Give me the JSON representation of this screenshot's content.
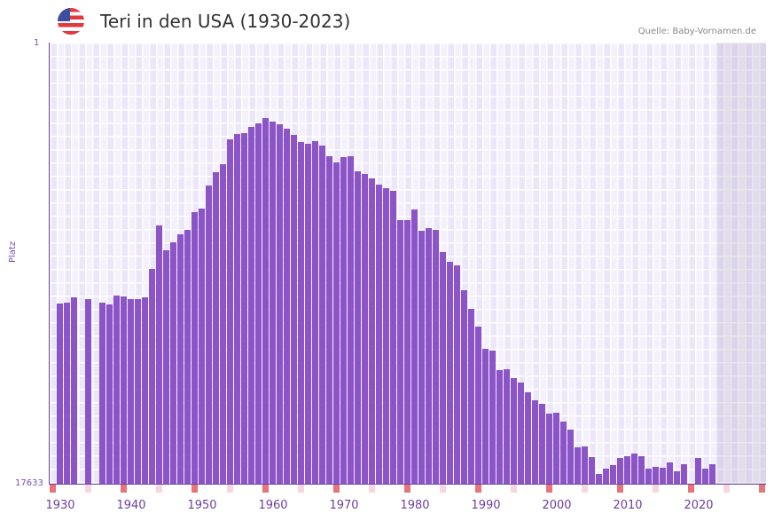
{
  "header": {
    "flag_icon": "us-flag-icon",
    "title": "Teri in den USA (1930-2023)",
    "source": "Quelle: Baby-Vornamen.de"
  },
  "colors": {
    "bar": "#8b55c7",
    "axis": "#6b3fa0",
    "marker_decade": "#e8737a",
    "marker_half": "#f6d6e0"
  },
  "chart_data": {
    "type": "bar",
    "title": "Teri in den USA (1930-2023)",
    "xlabel": "",
    "ylabel": "Platz",
    "y_axis_inverted": true,
    "ylim": [
      17633,
      1
    ],
    "yticks": [
      "1",
      "17633"
    ],
    "xticks": [
      "1930",
      "1940",
      "1950",
      "1960",
      "1970",
      "1980",
      "1990",
      "2000",
      "2010",
      "2020"
    ],
    "x_range": [
      1929,
      2029
    ],
    "future_shaded_from": 2023,
    "grid": true,
    "value_unit": "bar top pixel height above baseline (0-497 px, 497 = rank 1)",
    "categories": [
      1930,
      1931,
      1932,
      1933,
      1934,
      1935,
      1936,
      1937,
      1938,
      1939,
      1940,
      1941,
      1942,
      1943,
      1944,
      1945,
      1946,
      1947,
      1948,
      1949,
      1950,
      1951,
      1952,
      1953,
      1954,
      1955,
      1956,
      1957,
      1958,
      1959,
      1960,
      1961,
      1962,
      1963,
      1964,
      1965,
      1966,
      1967,
      1968,
      1969,
      1970,
      1971,
      1972,
      1973,
      1974,
      1975,
      1976,
      1977,
      1978,
      1979,
      1980,
      1981,
      1982,
      1983,
      1984,
      1985,
      1986,
      1987,
      1988,
      1989,
      1990,
      1991,
      1992,
      1993,
      1994,
      1995,
      1996,
      1997,
      1998,
      1999,
      2000,
      2001,
      2002,
      2003,
      2004,
      2005,
      2006,
      2007,
      2008,
      2009,
      2010,
      2011,
      2012,
      2013,
      2014,
      2015,
      2016,
      2017,
      2018,
      2019,
      2020,
      2021,
      2022
    ],
    "values": [
      203,
      204,
      210,
      0,
      208,
      0,
      204,
      202,
      212,
      211,
      208,
      208,
      210,
      242,
      291,
      263,
      272,
      281,
      286,
      306,
      310,
      336,
      351,
      360,
      388,
      394,
      395,
      402,
      406,
      412,
      408,
      405,
      400,
      393,
      385,
      383,
      386,
      381,
      369,
      362,
      368,
      369,
      352,
      349,
      344,
      337,
      333,
      330,
      297,
      297,
      309,
      285,
      288,
      286,
      261,
      250,
      246,
      218,
      197,
      177,
      152,
      150,
      128,
      129,
      119,
      114,
      103,
      94,
      90,
      79,
      80,
      70,
      61,
      41,
      42,
      30,
      11,
      17,
      21,
      29,
      31,
      34,
      31,
      17,
      19,
      18,
      24,
      14,
      22,
      0,
      29,
      17,
      22
    ]
  },
  "markers": {
    "decade_years": [
      1929,
      1939,
      1949,
      1959,
      1969,
      1979,
      1989,
      1999,
      2009,
      2019,
      2029
    ],
    "half_years": [
      1934,
      1944,
      1954,
      1964,
      1974,
      1984,
      1994,
      2004,
      2014,
      2024
    ]
  }
}
